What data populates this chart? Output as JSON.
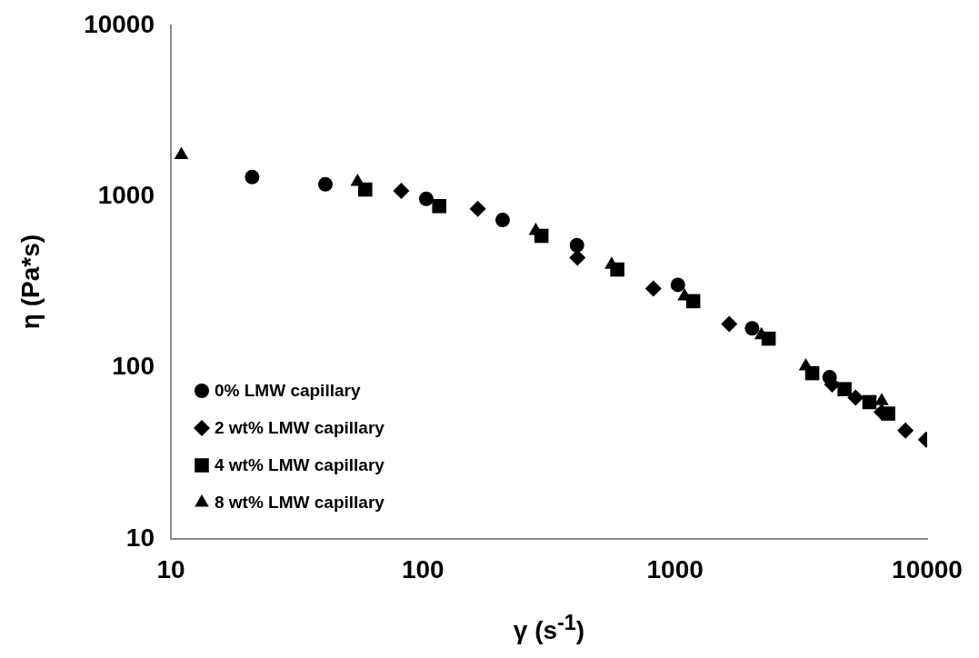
{
  "chart_data": {
    "type": "scatter",
    "xlabel": "γ (s$^{-1}$)",
    "ylabel": "η (Pa*s)",
    "log": "xy",
    "xlim": [
      10,
      10000
    ],
    "ylim": [
      10,
      10000
    ],
    "xticks": [
      10,
      100,
      1000,
      10000
    ],
    "yticks": [
      10,
      100,
      1000,
      10000
    ],
    "grid": false,
    "legend": "bottom left",
    "series": [
      {
        "name": "0% LMW capillary",
        "color": "#000000",
        "marker": "circle",
        "x": [
          21,
          41,
          103,
          207,
          408,
          1026,
          2020,
          4100
        ],
        "values": [
          1300,
          1180,
          970,
          730,
          520,
          305,
          170,
          88
        ]
      },
      {
        "name": "2 wt% LMW capillary",
        "color": "#000000",
        "marker": "diamond",
        "x": [
          82,
          165,
          410,
          820,
          1640,
          4200,
          5200,
          6600,
          8200,
          9900
        ],
        "values": [
          1080,
          850,
          440,
          290,
          180,
          80,
          67,
          55,
          43,
          38
        ]
      },
      {
        "name": "4 wt% LMW capillary",
        "color": "#000000",
        "marker": "square",
        "x": [
          59,
          116,
          295,
          590,
          1180,
          2350,
          3500,
          4700,
          5900,
          7000
        ],
        "values": [
          1100,
          880,
          590,
          375,
          245,
          148,
          93,
          75,
          63,
          54
        ]
      },
      {
        "name": "8 wt% LMW capillary",
        "color": "#000000",
        "marker": "triangle",
        "x": [
          11,
          55,
          280,
          560,
          1090,
          2200,
          3300,
          4300,
          6600
        ],
        "values": [
          1750,
          1220,
          630,
          400,
          262,
          155,
          102,
          null,
          64
        ]
      }
    ]
  }
}
